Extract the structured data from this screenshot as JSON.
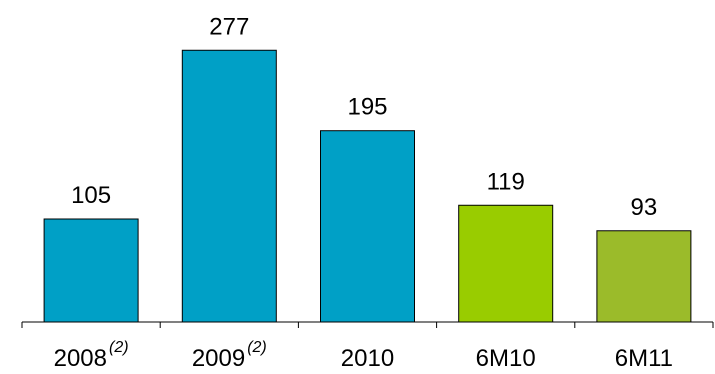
{
  "chart_data": {
    "type": "bar",
    "title": "",
    "xlabel": "",
    "ylabel": "",
    "categories": [
      "2008",
      "2009",
      "2010",
      "6M10",
      "6M11"
    ],
    "category_footnotes": [
      "(2)",
      "(2)",
      "",
      "",
      ""
    ],
    "values": [
      105,
      277,
      195,
      119,
      93
    ],
    "data_labels": [
      "105",
      "277",
      "195",
      "119",
      "93"
    ],
    "bar_colors": [
      "#00A0C6",
      "#00A0C6",
      "#00A0C6",
      "#99CC00",
      "#9BBB2A"
    ],
    "ylim": [
      0,
      300
    ],
    "grid": false,
    "legend": "none"
  }
}
